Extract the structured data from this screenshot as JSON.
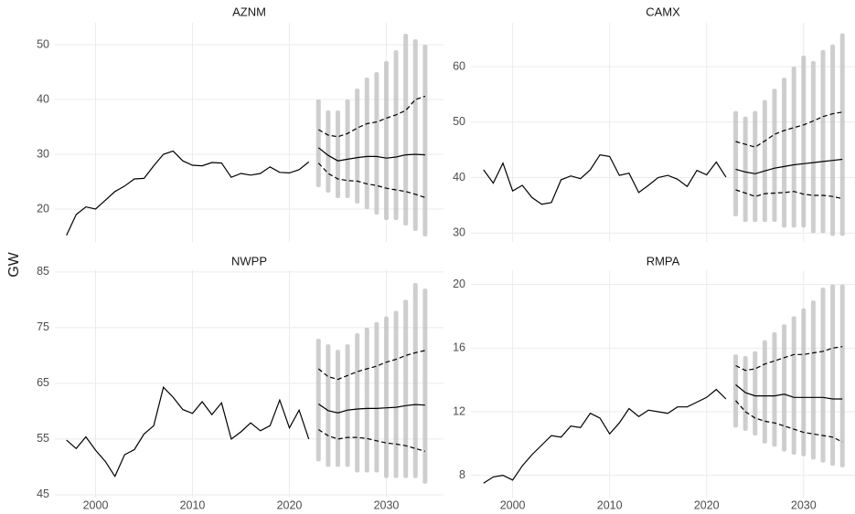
{
  "ylabel": "GW",
  "chart_data": [
    {
      "type": "line",
      "title": "AZNM",
      "xlim": [
        1995.8,
        2035.9
      ],
      "xticks": [
        2000,
        2010,
        2020,
        2030
      ],
      "ylim": [
        14,
        54
      ],
      "yticks": [
        20,
        30,
        40,
        50
      ],
      "grid": true,
      "range": {
        "color": "#bdbdbd",
        "x": [
          2023,
          2024,
          2025,
          2026,
          2027,
          2028,
          2029,
          2030,
          2031,
          2032,
          2033,
          2034
        ],
        "low": [
          24,
          23,
          22,
          22,
          21,
          20,
          19,
          18,
          18,
          17,
          16,
          15
        ],
        "high": [
          40,
          38,
          38,
          40,
          42,
          44,
          45,
          47,
          49,
          52,
          51,
          50
        ]
      },
      "series": [
        {
          "color": "#000000",
          "dash": false,
          "x": [
            1997,
            1998,
            1999,
            2000,
            2001,
            2002,
            2003,
            2004,
            2005,
            2006,
            2007,
            2008,
            2009,
            2010,
            2011,
            2012,
            2013,
            2014,
            2015,
            2016,
            2017,
            2018,
            2019,
            2020,
            2021,
            2022
          ],
          "values": [
            15.2,
            19,
            20.4,
            20,
            21.6,
            23.2,
            24.2,
            25.5,
            25.6,
            27.9,
            30,
            30.6,
            28.8,
            28,
            27.9,
            28.5,
            28.4,
            25.8,
            26.5,
            26.2,
            26.5,
            27.7,
            26.7,
            26.6,
            27.2,
            28.6
          ]
        },
        {
          "color": "#000000",
          "dash": false,
          "x": [
            2023,
            2024,
            2025,
            2026,
            2027,
            2028,
            2029,
            2030,
            2031,
            2032,
            2033,
            2034
          ],
          "values": [
            31.2,
            29.8,
            28.8,
            29.1,
            29.4,
            29.6,
            29.6,
            29.3,
            29.5,
            29.9,
            30,
            29.9
          ]
        },
        {
          "color": "#000000",
          "dash": true,
          "x": [
            2023,
            2024,
            2025,
            2026,
            2027,
            2028,
            2029,
            2030,
            2031,
            2032,
            2033,
            2034
          ],
          "values": [
            34.5,
            33.5,
            33.2,
            33.8,
            34.8,
            35.6,
            35.9,
            36.6,
            37.2,
            38,
            40,
            40.6
          ]
        },
        {
          "color": "#000000",
          "dash": true,
          "x": [
            2023,
            2024,
            2025,
            2026,
            2027,
            2028,
            2029,
            2030,
            2031,
            2032,
            2033,
            2034
          ],
          "values": [
            28.4,
            26.5,
            25.5,
            25.2,
            25.1,
            24.6,
            24.3,
            23.8,
            23.5,
            23.2,
            22.7,
            22.1
          ]
        }
      ]
    },
    {
      "type": "line",
      "title": "CAMX",
      "xlim": [
        1995.7,
        2035.3
      ],
      "xticks": [
        2000,
        2010,
        2020,
        2030
      ],
      "ylim": [
        28.4,
        67.9
      ],
      "yticks": [
        30,
        40,
        50,
        60
      ],
      "grid": true,
      "range": {
        "color": "#bdbdbd",
        "x": [
          2023,
          2024,
          2025,
          2026,
          2027,
          2028,
          2029,
          2030,
          2031,
          2032,
          2033,
          2034
        ],
        "low": [
          33,
          32,
          32,
          32,
          32,
          31,
          31,
          31,
          30,
          30,
          29.5,
          29.5
        ],
        "high": [
          52,
          51,
          52,
          54,
          56,
          58,
          60,
          62,
          61,
          63,
          64,
          66
        ]
      },
      "series": [
        {
          "color": "#000000",
          "dash": false,
          "x": [
            1997,
            1998,
            1999,
            2000,
            2001,
            2002,
            2003,
            2004,
            2005,
            2006,
            2007,
            2008,
            2009,
            2010,
            2011,
            2012,
            2013,
            2014,
            2015,
            2016,
            2017,
            2018,
            2019,
            2020,
            2021,
            2022
          ],
          "values": [
            41.4,
            39,
            42.6,
            37.6,
            38.6,
            36.4,
            35.2,
            35.5,
            39.6,
            40.3,
            39.8,
            41.4,
            44.1,
            43.8,
            40.4,
            40.8,
            37.3,
            38.6,
            40,
            40.4,
            39.7,
            38.4,
            41.3,
            40.5,
            42.8,
            40.1
          ]
        },
        {
          "color": "#000000",
          "dash": false,
          "x": [
            2023,
            2024,
            2025,
            2026,
            2027,
            2028,
            2029,
            2030,
            2031,
            2032,
            2033,
            2034
          ],
          "values": [
            41.5,
            41,
            40.7,
            41.2,
            41.7,
            42,
            42.3,
            42.5,
            42.7,
            42.9,
            43.1,
            43.3
          ]
        },
        {
          "color": "#000000",
          "dash": true,
          "x": [
            2023,
            2024,
            2025,
            2026,
            2027,
            2028,
            2029,
            2030,
            2031,
            2032,
            2033,
            2034
          ],
          "values": [
            46.5,
            46,
            45.5,
            46.6,
            47.8,
            48.5,
            49,
            49.5,
            50.2,
            51,
            51.5,
            51.8
          ]
        },
        {
          "color": "#000000",
          "dash": true,
          "x": [
            2023,
            2024,
            2025,
            2026,
            2027,
            2028,
            2029,
            2030,
            2031,
            2032,
            2033,
            2034
          ],
          "values": [
            37.8,
            37.2,
            36.6,
            37.1,
            37.2,
            37.3,
            37.5,
            37,
            36.8,
            36.8,
            36.6,
            36.2
          ]
        }
      ]
    },
    {
      "type": "line",
      "title": "NWPP",
      "xlim": [
        1995.8,
        2035.9
      ],
      "xticks": [
        2000,
        2010,
        2020,
        2030
      ],
      "ylim": [
        44.5,
        85.3
      ],
      "yticks": [
        45,
        55,
        65,
        75,
        85
      ],
      "grid": true,
      "range": {
        "color": "#bdbdbd",
        "x": [
          2023,
          2024,
          2025,
          2026,
          2027,
          2028,
          2029,
          2030,
          2031,
          2032,
          2033,
          2034
        ],
        "low": [
          51,
          50,
          50,
          50,
          49,
          49,
          49,
          48,
          48,
          48,
          48,
          47
        ],
        "high": [
          73,
          72,
          71,
          72,
          74,
          75,
          76,
          77,
          78,
          80,
          83,
          82
        ]
      },
      "series": [
        {
          "color": "#000000",
          "dash": false,
          "x": [
            1997,
            1998,
            1999,
            2000,
            2001,
            2002,
            2003,
            2004,
            2005,
            2006,
            2007,
            2008,
            2009,
            2010,
            2011,
            2012,
            2013,
            2014,
            2015,
            2016,
            2017,
            2018,
            2019,
            2020,
            2021,
            2022
          ],
          "values": [
            54.8,
            53.3,
            55.4,
            53,
            51,
            48.3,
            52.2,
            53.1,
            55.9,
            57.4,
            64.3,
            62.5,
            60.3,
            59.6,
            61.7,
            59.4,
            61.5,
            55,
            56.3,
            57.9,
            56.5,
            57.4,
            62,
            57,
            60.2,
            55
          ]
        },
        {
          "color": "#000000",
          "dash": false,
          "x": [
            2023,
            2024,
            2025,
            2026,
            2027,
            2028,
            2029,
            2030,
            2031,
            2032,
            2033,
            2034
          ],
          "values": [
            61.3,
            60.1,
            59.7,
            60.2,
            60.4,
            60.5,
            60.5,
            60.6,
            60.7,
            61,
            61.2,
            61.1
          ]
        },
        {
          "color": "#000000",
          "dash": true,
          "x": [
            2023,
            2024,
            2025,
            2026,
            2027,
            2028,
            2029,
            2030,
            2031,
            2032,
            2033,
            2034
          ],
          "values": [
            67.6,
            66.2,
            65.7,
            66.4,
            67.1,
            67.6,
            68.1,
            68.8,
            69.3,
            70,
            70.5,
            70.9
          ]
        },
        {
          "color": "#000000",
          "dash": true,
          "x": [
            2023,
            2024,
            2025,
            2026,
            2027,
            2028,
            2029,
            2030,
            2031,
            2032,
            2033,
            2034
          ],
          "values": [
            56.7,
            55.6,
            55,
            55.3,
            55.3,
            55.1,
            54.7,
            54.3,
            54.1,
            53.8,
            53.3,
            52.8
          ]
        }
      ]
    },
    {
      "type": "line",
      "title": "RMPA",
      "xlim": [
        1995.7,
        2035.3
      ],
      "xticks": [
        2000,
        2010,
        2020,
        2030
      ],
      "ylim": [
        6.6,
        20.9
      ],
      "yticks": [
        8,
        12,
        16,
        20
      ],
      "grid": true,
      "range": {
        "color": "#bdbdbd",
        "x": [
          2023,
          2024,
          2025,
          2026,
          2027,
          2028,
          2029,
          2030,
          2031,
          2032,
          2033,
          2034
        ],
        "low": [
          11,
          10.8,
          10.5,
          10,
          9.8,
          9.5,
          9.3,
          9.2,
          9,
          8.8,
          8.6,
          8.5
        ],
        "high": [
          15.6,
          15.5,
          15.8,
          16.5,
          17,
          17.5,
          18,
          18.5,
          19,
          19.8,
          20,
          20
        ]
      },
      "series": [
        {
          "color": "#000000",
          "dash": false,
          "x": [
            1997,
            1998,
            1999,
            2000,
            2001,
            2002,
            2003,
            2004,
            2005,
            2006,
            2007,
            2008,
            2009,
            2010,
            2011,
            2012,
            2013,
            2014,
            2015,
            2016,
            2017,
            2018,
            2019,
            2020,
            2021,
            2022
          ],
          "values": [
            7.5,
            7.9,
            8,
            7.7,
            8.6,
            9.3,
            9.9,
            10.5,
            10.4,
            11.1,
            11,
            11.9,
            11.6,
            10.6,
            11.3,
            12.2,
            11.7,
            12.1,
            12,
            11.9,
            12.3,
            12.3,
            12.6,
            12.9,
            13.4,
            12.8
          ]
        },
        {
          "color": "#000000",
          "dash": false,
          "x": [
            2023,
            2024,
            2025,
            2026,
            2027,
            2028,
            2029,
            2030,
            2031,
            2032,
            2033,
            2034
          ],
          "values": [
            13.7,
            13.2,
            13,
            13,
            13,
            13.1,
            12.9,
            12.9,
            12.9,
            12.9,
            12.8,
            12.8
          ]
        },
        {
          "color": "#000000",
          "dash": true,
          "x": [
            2023,
            2024,
            2025,
            2026,
            2027,
            2028,
            2029,
            2030,
            2031,
            2032,
            2033,
            2034
          ],
          "values": [
            14.9,
            14.6,
            14.7,
            15,
            15.2,
            15.4,
            15.6,
            15.6,
            15.7,
            15.8,
            16,
            16.1
          ]
        },
        {
          "color": "#000000",
          "dash": true,
          "x": [
            2023,
            2024,
            2025,
            2026,
            2027,
            2028,
            2029,
            2030,
            2031,
            2032,
            2033,
            2034
          ],
          "values": [
            12.7,
            12,
            11.6,
            11.4,
            11.3,
            11.1,
            10.9,
            10.7,
            10.6,
            10.5,
            10.4,
            10.1
          ]
        }
      ]
    }
  ]
}
